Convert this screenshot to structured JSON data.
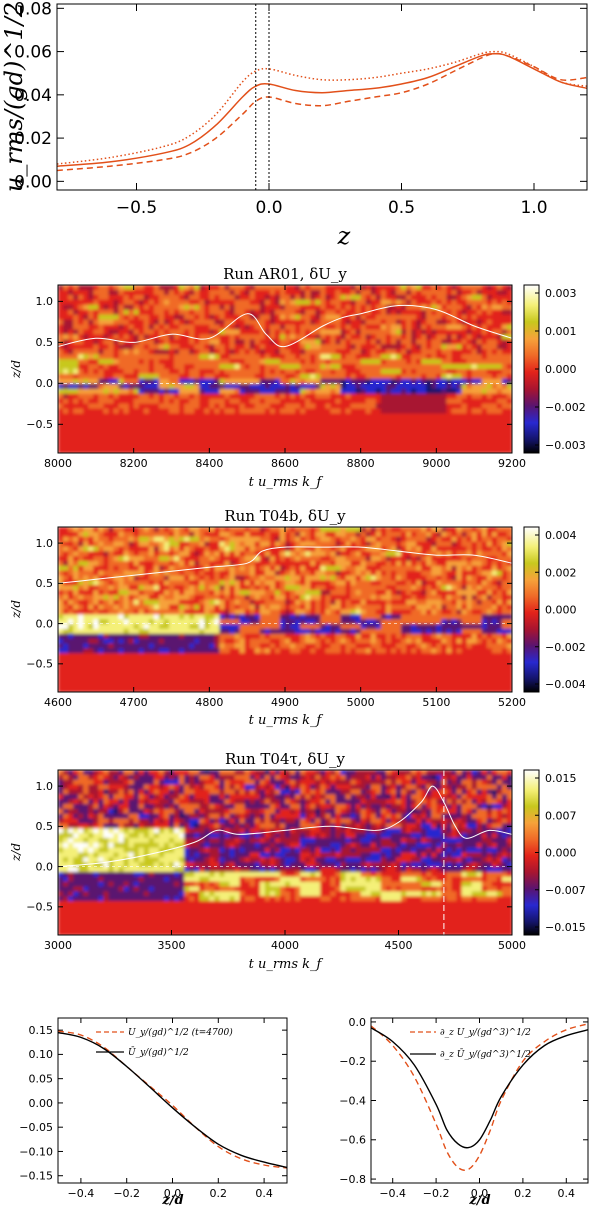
{
  "chart_data": [
    {
      "id": "urms",
      "type": "line",
      "ylabel": "u_rms/(gd)^1/2",
      "xlabel": "z",
      "xlim": [
        -0.8,
        1.2
      ],
      "ylim": [
        -0.004,
        0.082
      ],
      "xticks": [
        "-0.5",
        "0.0",
        "0.5",
        "1.0"
      ],
      "yticks": [
        "0.00",
        "0.02",
        "0.04",
        "0.06",
        "0.08"
      ],
      "vlines": [
        -0.05,
        0.0
      ],
      "colors": {
        "line": "#e2501a",
        "ref": "#000000"
      },
      "series": [
        {
          "name": "solid",
          "style": "solid",
          "x": [
            -0.8,
            -0.6,
            -0.4,
            -0.3,
            -0.2,
            -0.1,
            -0.05,
            0.0,
            0.1,
            0.2,
            0.3,
            0.4,
            0.5,
            0.6,
            0.7,
            0.8,
            0.85,
            0.9,
            1.0,
            1.1,
            1.2
          ],
          "y": [
            0.007,
            0.009,
            0.013,
            0.017,
            0.026,
            0.039,
            0.044,
            0.045,
            0.042,
            0.041,
            0.042,
            0.043,
            0.045,
            0.048,
            0.053,
            0.058,
            0.059,
            0.058,
            0.052,
            0.046,
            0.043
          ]
        },
        {
          "name": "dotted",
          "style": "dotted",
          "x": [
            -0.8,
            -0.6,
            -0.4,
            -0.3,
            -0.2,
            -0.1,
            -0.05,
            0.0,
            0.1,
            0.2,
            0.3,
            0.4,
            0.5,
            0.6,
            0.7,
            0.8,
            0.85,
            0.9,
            1.0,
            1.1,
            1.2
          ],
          "y": [
            0.008,
            0.011,
            0.016,
            0.021,
            0.031,
            0.046,
            0.051,
            0.052,
            0.049,
            0.047,
            0.047,
            0.048,
            0.05,
            0.052,
            0.055,
            0.059,
            0.06,
            0.059,
            0.053,
            0.046,
            0.044
          ]
        },
        {
          "name": "dashed",
          "style": "dashed",
          "x": [
            -0.8,
            -0.6,
            -0.4,
            -0.3,
            -0.2,
            -0.1,
            -0.05,
            0.0,
            0.1,
            0.2,
            0.3,
            0.4,
            0.5,
            0.6,
            0.7,
            0.8,
            0.85,
            0.9,
            1.0,
            1.1,
            1.2
          ],
          "y": [
            0.005,
            0.007,
            0.01,
            0.013,
            0.02,
            0.031,
            0.037,
            0.039,
            0.036,
            0.035,
            0.037,
            0.039,
            0.041,
            0.045,
            0.051,
            0.057,
            0.059,
            0.058,
            0.053,
            0.047,
            0.048
          ]
        }
      ]
    },
    {
      "id": "ar01",
      "type": "heatmap",
      "title": "Run AR01, δU_y",
      "ylabel": "z/d",
      "xlabel": "t u_rms k_f",
      "xlim": [
        8000,
        9200
      ],
      "ylim": [
        -0.85,
        1.2
      ],
      "xticks": [
        "8000",
        "8200",
        "8400",
        "8600",
        "8800",
        "9000",
        "9200"
      ],
      "yticks": [
        "-0.5",
        "0.0",
        "0.5",
        "1.0"
      ],
      "colorbar": [
        "0.003",
        "0.001",
        "0.000",
        "-0.002",
        "-0.003"
      ],
      "white_line": {
        "x": [
          8000,
          8100,
          8200,
          8300,
          8400,
          8500,
          8550,
          8600,
          8700,
          8750,
          8800,
          8900,
          9000,
          9100,
          9200
        ],
        "y": [
          0.45,
          0.55,
          0.5,
          0.6,
          0.55,
          0.85,
          0.6,
          0.45,
          0.7,
          0.8,
          0.85,
          0.95,
          0.9,
          0.7,
          0.55
        ]
      }
    },
    {
      "id": "t04b",
      "type": "heatmap",
      "title": "Run T04b, δU_y",
      "ylabel": "z/d",
      "xlabel": "t u_rms k_f",
      "xlim": [
        4600,
        5200
      ],
      "ylim": [
        -0.85,
        1.2
      ],
      "xticks": [
        "4600",
        "4700",
        "4800",
        "4900",
        "5000",
        "5100",
        "5200"
      ],
      "yticks": [
        "-0.5",
        "0.0",
        "0.5",
        "1.0"
      ],
      "colorbar": [
        "0.004",
        "0.002",
        "0.000",
        "-0.002",
        "-0.004"
      ],
      "white_line": {
        "x": [
          4600,
          4650,
          4700,
          4750,
          4800,
          4850,
          4870,
          4900,
          4950,
          5000,
          5050,
          5100,
          5150,
          5200
        ],
        "y": [
          0.5,
          0.55,
          0.6,
          0.65,
          0.7,
          0.75,
          0.9,
          0.95,
          0.95,
          0.95,
          0.9,
          0.85,
          0.85,
          0.75
        ]
      }
    },
    {
      "id": "t04tau",
      "type": "heatmap",
      "title": "Run T04τ, δU_y",
      "ylabel": "z/d",
      "xlabel": "t u_rms k_f",
      "xlim": [
        3000,
        5000
      ],
      "ylim": [
        -0.85,
        1.2
      ],
      "xticks": [
        "3000",
        "3500",
        "4000",
        "4500",
        "5000"
      ],
      "yticks": [
        "-0.5",
        "0.0",
        "0.5",
        "1.0"
      ],
      "colorbar": [
        "0.015",
        "0.007",
        "0.000",
        "-0.007",
        "-0.015"
      ],
      "marker_t": 4700,
      "white_line": {
        "x": [
          3000,
          3200,
          3400,
          3600,
          3700,
          3800,
          4000,
          4200,
          4400,
          4500,
          4600,
          4650,
          4700,
          4750,
          4800,
          4900,
          5000
        ],
        "y": [
          0.0,
          0.05,
          0.15,
          0.3,
          0.45,
          0.4,
          0.45,
          0.5,
          0.45,
          0.55,
          0.8,
          1.0,
          0.8,
          0.5,
          0.35,
          0.45,
          0.4
        ]
      }
    },
    {
      "id": "uy",
      "type": "line",
      "xlabel": "z/d",
      "xlim": [
        -0.5,
        0.5
      ],
      "ylim": [
        -0.165,
        0.175
      ],
      "xticks": [
        "-0.4",
        "-0.2",
        "0.0",
        "0.2",
        "0.4"
      ],
      "yticks": [
        "0.15",
        "0.10",
        "0.05",
        "0.00",
        "-0.05",
        "-0.10",
        "-0.15"
      ],
      "legend": [
        "U_y/(gd)^1/2 (t=4700)",
        "Ū_y/(gd)^1/2"
      ],
      "series": [
        {
          "name": "U_y (t=4700)",
          "style": "dashed",
          "color": "#e2501a",
          "x": [
            -0.5,
            -0.4,
            -0.3,
            -0.2,
            -0.1,
            0.0,
            0.1,
            0.2,
            0.3,
            0.4,
            0.5
          ],
          "y": [
            0.148,
            0.14,
            0.115,
            0.075,
            0.035,
            -0.005,
            -0.05,
            -0.09,
            -0.115,
            -0.128,
            -0.134
          ]
        },
        {
          "name": "Ū_y",
          "style": "solid",
          "color": "#000000",
          "x": [
            -0.5,
            -0.4,
            -0.3,
            -0.2,
            -0.1,
            0.0,
            0.1,
            0.2,
            0.3,
            0.4,
            0.5
          ],
          "y": [
            0.145,
            0.135,
            0.112,
            0.075,
            0.033,
            -0.01,
            -0.05,
            -0.085,
            -0.108,
            -0.122,
            -0.133
          ]
        }
      ]
    },
    {
      "id": "dzuy",
      "type": "line",
      "xlabel": "z/d",
      "xlim": [
        -0.5,
        0.5
      ],
      "ylim": [
        -0.82,
        0.02
      ],
      "xticks": [
        "-0.4",
        "-0.2",
        "0.0",
        "0.2",
        "0.4"
      ],
      "yticks": [
        "0.0",
        "-0.2",
        "-0.4",
        "-0.6",
        "-0.8"
      ],
      "legend": [
        "∂_z U_y/(gd^3)^1/2",
        "∂_z Ū_y/(gd^3)^1/2"
      ],
      "series": [
        {
          "name": "dzUy",
          "style": "dashed",
          "color": "#e2501a",
          "x": [
            -0.5,
            -0.4,
            -0.3,
            -0.2,
            -0.15,
            -0.1,
            -0.05,
            0.0,
            0.05,
            0.1,
            0.2,
            0.3,
            0.4,
            0.5
          ],
          "y": [
            -0.02,
            -0.12,
            -0.28,
            -0.52,
            -0.66,
            -0.74,
            -0.75,
            -0.68,
            -0.55,
            -0.4,
            -0.2,
            -0.1,
            -0.04,
            -0.01
          ]
        },
        {
          "name": "dzUybar",
          "style": "solid",
          "color": "#000000",
          "x": [
            -0.5,
            -0.4,
            -0.3,
            -0.2,
            -0.15,
            -0.1,
            -0.05,
            0.0,
            0.05,
            0.1,
            0.2,
            0.3,
            0.4,
            0.5
          ],
          "y": [
            -0.03,
            -0.1,
            -0.22,
            -0.42,
            -0.55,
            -0.62,
            -0.64,
            -0.6,
            -0.5,
            -0.38,
            -0.22,
            -0.12,
            -0.07,
            -0.04
          ]
        }
      ]
    }
  ]
}
